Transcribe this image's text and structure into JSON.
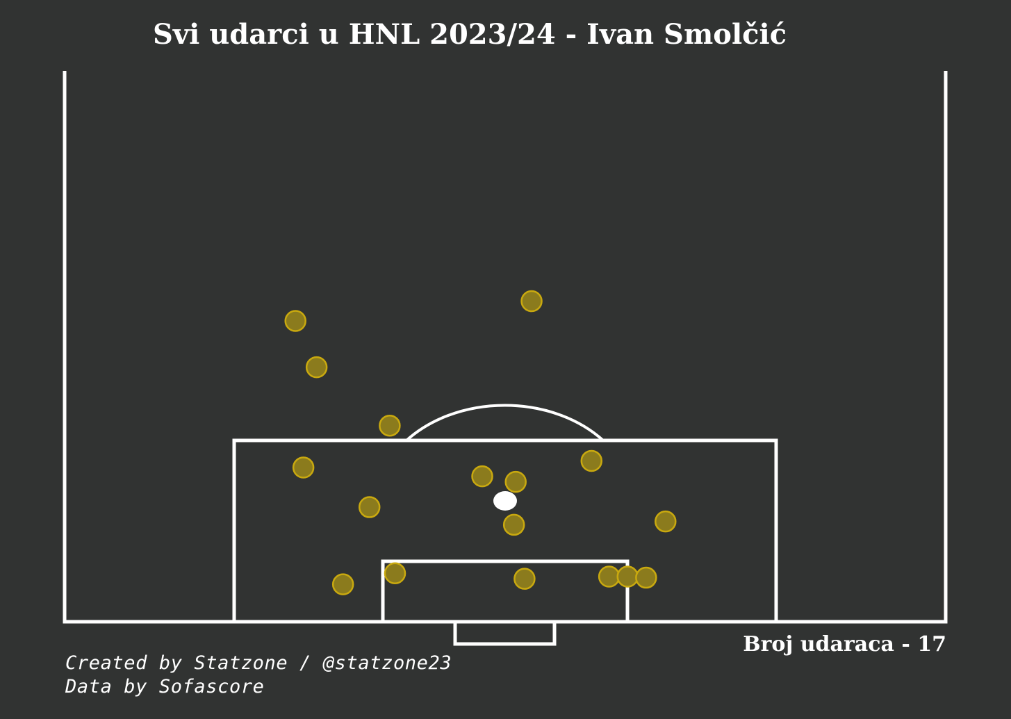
{
  "title": "Svi udarci u HNL 2023/24 - Ivan Smolčić",
  "shot_count_text": "Broj udaraca - 17",
  "credits": {
    "created_by": "Created by Statzone / @statzone23",
    "data_by": "Data by Sofascore"
  },
  "colors": {
    "background": "#313332",
    "lines": "#ffffff",
    "shot_fill": "#8b7b1d",
    "shot_edge": "#c9a90f"
  },
  "chart_data": {
    "type": "scatter",
    "title": "Svi udarci u HNL 2023/24 - Ivan Smolčić",
    "xlabel": "",
    "ylabel": "",
    "xlim": [
      0,
      100
    ],
    "ylim": [
      0,
      50
    ],
    "grid": false,
    "series": [
      {
        "points": [
          {
            "x": 26.2,
            "y": 27.3
          },
          {
            "x": 28.6,
            "y": 23.1
          },
          {
            "x": 53.0,
            "y": 29.1
          },
          {
            "x": 36.9,
            "y": 17.8
          },
          {
            "x": 27.1,
            "y": 14.0
          },
          {
            "x": 34.6,
            "y": 10.4
          },
          {
            "x": 47.4,
            "y": 13.2
          },
          {
            "x": 51.2,
            "y": 12.7
          },
          {
            "x": 59.8,
            "y": 14.6
          },
          {
            "x": 51.0,
            "y": 8.8
          },
          {
            "x": 68.2,
            "y": 9.1
          },
          {
            "x": 31.6,
            "y": 3.4
          },
          {
            "x": 37.5,
            "y": 4.4
          },
          {
            "x": 52.2,
            "y": 3.9
          },
          {
            "x": 61.8,
            "y": 4.1
          },
          {
            "x": 63.9,
            "y": 4.1
          },
          {
            "x": 66.0,
            "y": 4.0
          }
        ]
      }
    ]
  }
}
